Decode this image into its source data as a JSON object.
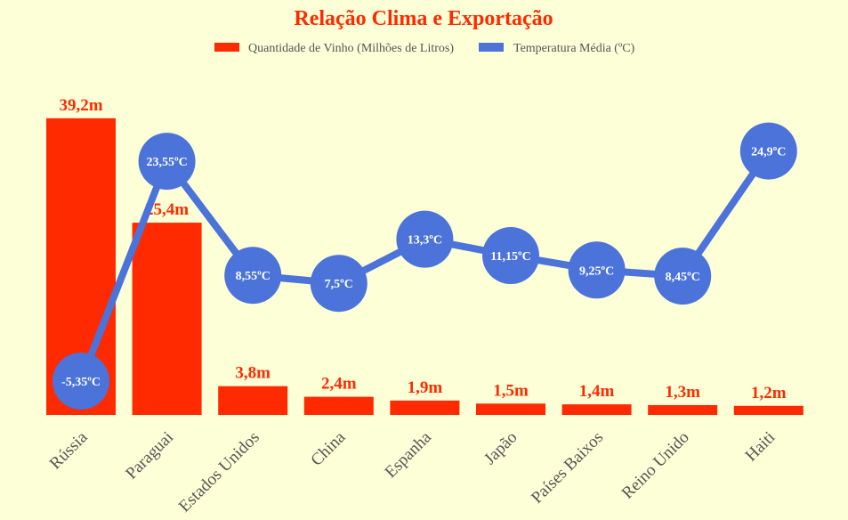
{
  "colors": {
    "bar": "#ff2a00",
    "line": "#4b73d9",
    "background": "#fdffd7",
    "text": "#555555"
  },
  "chart_data": {
    "type": "bar",
    "title": "Relação Clima e Exportação",
    "legend_position": "top-center",
    "grid": false,
    "categories": [
      "Rússia",
      "Paraguai",
      "Estados Unidos",
      "China",
      "Espanha",
      "Japão",
      "Países Baixos",
      "Reino Unido",
      "Haiti"
    ],
    "series": [
      {
        "name": "Quantidade de Vinho (Milhões de Litros)",
        "type": "bar",
        "values": [
          39.2,
          25.4,
          3.8,
          2.4,
          1.9,
          1.5,
          1.4,
          1.3,
          1.2
        ],
        "labels": [
          "39,2m",
          "25,4m",
          "3,8m",
          "2,4m",
          "1,9m",
          "1,5m",
          "1,4m",
          "1,3m",
          "1,2m"
        ],
        "ylim": [
          0,
          40
        ]
      },
      {
        "name": "Temperatura Média (ºC)",
        "type": "line",
        "values": [
          -5.35,
          23.55,
          8.55,
          7.5,
          13.3,
          11.15,
          9.25,
          8.45,
          24.9
        ],
        "labels": [
          "-5,35ºC",
          "23,55ºC",
          "8,55ºC",
          "7,5ºC",
          "13,3ºC",
          "11,15ºC",
          "9,25ºC",
          "8,45ºC",
          "24,9ºC"
        ],
        "ylim": [
          -9.8,
          30
        ]
      }
    ]
  }
}
